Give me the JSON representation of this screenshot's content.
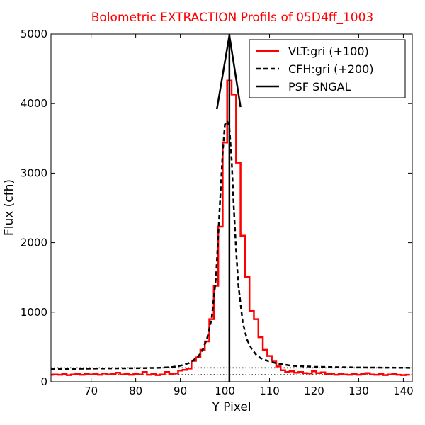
{
  "chart_data": {
    "type": "line",
    "title": "Bolometric EXTRACTION Profils of 05D4ff_1003",
    "title_color": "#ff0000",
    "xlabel": "Y Pixel",
    "ylabel": "Flux (cfh)",
    "xlim": [
      61,
      142
    ],
    "ylim": [
      0,
      5000
    ],
    "x_ticks": [
      70,
      80,
      90,
      100,
      110,
      120,
      130,
      140
    ],
    "y_ticks": [
      0,
      1000,
      2000,
      3000,
      4000,
      5000
    ],
    "grid": false,
    "legend_position": "top-right",
    "series": [
      {
        "name": "VLT:gri (+100)",
        "style": "step",
        "color": "#ff0000",
        "x": [
          61,
          62,
          63,
          64,
          65,
          66,
          67,
          68,
          69,
          70,
          71,
          72,
          73,
          74,
          75,
          76,
          77,
          78,
          79,
          80,
          81,
          82,
          83,
          84,
          85,
          86,
          87,
          88,
          89,
          90,
          91,
          92,
          93,
          94,
          95,
          96,
          97,
          98,
          99,
          100,
          101,
          102,
          103,
          104,
          105,
          106,
          107,
          108,
          109,
          110,
          111,
          112,
          113,
          114,
          115,
          116,
          117,
          118,
          119,
          120,
          121,
          122,
          123,
          124,
          125,
          126,
          127,
          128,
          129,
          130,
          131,
          132,
          133,
          134,
          135,
          136,
          137,
          138,
          139,
          140,
          141
        ],
        "y": [
          100,
          105,
          100,
          110,
          95,
          105,
          110,
          100,
          115,
          105,
          110,
          100,
          120,
          105,
          110,
          130,
          105,
          110,
          100,
          115,
          105,
          140,
          100,
          110,
          95,
          105,
          140,
          110,
          120,
          160,
          170,
          190,
          300,
          350,
          460,
          580,
          900,
          1380,
          2230,
          3440,
          4330,
          4130,
          3150,
          2100,
          1510,
          1020,
          900,
          640,
          460,
          370,
          300,
          220,
          165,
          140,
          150,
          130,
          140,
          125,
          120,
          150,
          125,
          135,
          110,
          120,
          100,
          110,
          105,
          100,
          115,
          100,
          110,
          125,
          105,
          100,
          110,
          95,
          105,
          115,
          100,
          95,
          100
        ]
      },
      {
        "name": "CFH:gri (+200)",
        "style": "dashed",
        "color": "#000000",
        "x": [
          61,
          70,
          80,
          85,
          88,
          90,
          92,
          94,
          95,
          96,
          97,
          98,
          99,
          99.5,
          100,
          100.5,
          101,
          101.5,
          102,
          102.5,
          103,
          104,
          105,
          106,
          107,
          108,
          110,
          112,
          115,
          120,
          130,
          142
        ],
        "y": [
          180,
          190,
          195,
          200,
          210,
          230,
          270,
          360,
          460,
          620,
          900,
          1500,
          2700,
          3300,
          3700,
          3750,
          3650,
          3200,
          2500,
          1900,
          1400,
          850,
          600,
          470,
          390,
          340,
          290,
          260,
          230,
          215,
          205,
          200
        ]
      },
      {
        "name": "PSF SNGAL",
        "style": "solid",
        "color": "#000000",
        "x": [
          101,
          101
        ],
        "y": [
          0,
          5000
        ]
      }
    ],
    "annotations": [
      {
        "kind": "peak-wedge",
        "color": "#000000",
        "x": [
          98.2,
          101,
          103.5
        ],
        "y": [
          3920,
          4980,
          3950
        ]
      },
      {
        "kind": "dotted-baseline",
        "color": "#000000",
        "y": 200
      },
      {
        "kind": "dotted-baseline",
        "color": "#000000",
        "y": 100
      }
    ]
  }
}
